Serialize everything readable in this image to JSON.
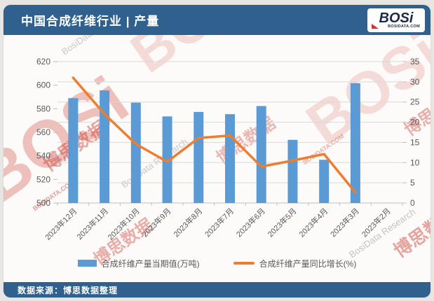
{
  "header": {
    "title": "中国合成纤维行业 | 产量"
  },
  "logo": {
    "name": "BOSi",
    "domain": "BOSIDATA.COM"
  },
  "footer": {
    "source": "数据来源：博思数据整理"
  },
  "watermarks": {
    "items": [
      {
        "text": "BOSi"
      },
      {
        "text": "博思数据"
      },
      {
        "text": "BosiData Research"
      },
      {
        "text": "BOSIDATA.COM"
      }
    ]
  },
  "chart_data": {
    "type": "bar+line combo",
    "categories": [
      "2023年12月",
      "2023年11月",
      "2023年10月",
      "2023年9月",
      "2023年8月",
      "2023年7月",
      "2023年6月",
      "2023年5月",
      "2023年4月",
      "2023年3月",
      "2023年2月"
    ],
    "series": [
      {
        "name": "合成纤维产量当期值(万吨)",
        "type": "bar",
        "axis": "left",
        "color": "#5b9bd5",
        "values": [
          589,
          595.6,
          585.2,
          573.5,
          577.3,
          575.4,
          582.3,
          553.6,
          536.7,
          601.7,
          null
        ]
      },
      {
        "name": "合成纤维产量同比增长(%)",
        "type": "line",
        "axis": "right",
        "color": "#ed7d31",
        "values": [
          31.0,
          22.0,
          14.6,
          10.2,
          16.1,
          16.7,
          9.0,
          10.5,
          12.1,
          2.6,
          null
        ]
      }
    ],
    "left_axis": {
      "min": 500,
      "max": 620,
      "step": 20,
      "tick_labels": [
        500,
        520,
        540,
        560,
        580,
        600,
        620
      ]
    },
    "right_axis": {
      "min": 0,
      "max": 35,
      "step": 5,
      "tick_labels": [
        0,
        5,
        10,
        15,
        20,
        25,
        30,
        35
      ]
    },
    "grid": "horizontal major gridlines (right-axis intervals)",
    "legend_position": "bottom-center",
    "colors": {
      "header_bar": "#30618e",
      "grid_line": "#d9d9d9",
      "axis_text": "#595959"
    }
  }
}
